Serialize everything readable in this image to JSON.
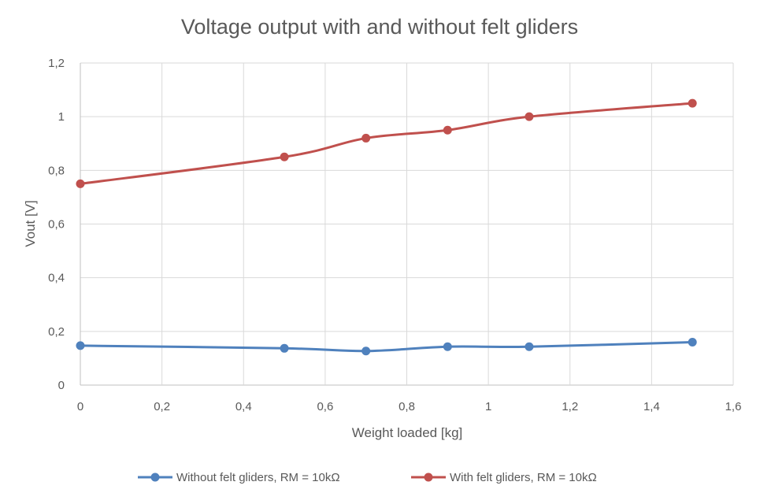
{
  "chart_data": {
    "type": "line",
    "title": "Voltage output with and without felt gliders",
    "xlabel": "Weight loaded [kg]",
    "ylabel": "Vout [V]",
    "xlim": [
      0,
      1.6
    ],
    "ylim": [
      0,
      1.2
    ],
    "x_ticks": [
      "0",
      "0,2",
      "0,4",
      "0,6",
      "0,8",
      "1",
      "1,2",
      "1,4",
      "1,6"
    ],
    "x_tick_values": [
      0,
      0.2,
      0.4,
      0.6,
      0.8,
      1.0,
      1.2,
      1.4,
      1.6
    ],
    "y_ticks": [
      "0",
      "0,2",
      "0,4",
      "0,6",
      "0,8",
      "1",
      "1,2"
    ],
    "y_tick_values": [
      0,
      0.2,
      0.4,
      0.6,
      0.8,
      1.0,
      1.2
    ],
    "grid": true,
    "legend_position": "bottom",
    "smooth": true,
    "x": [
      0,
      0.5,
      0.7,
      0.9,
      1.1,
      1.5
    ],
    "series": [
      {
        "name": "Without felt gliders, RM = 10kΩ",
        "color": "#4f81bd",
        "values": [
          0.147,
          0.137,
          0.127,
          0.143,
          0.143,
          0.16
        ]
      },
      {
        "name": "With felt gliders, RM = 10kΩ",
        "color": "#c0504d",
        "values": [
          0.75,
          0.85,
          0.92,
          0.95,
          1.0,
          1.05
        ]
      }
    ]
  }
}
